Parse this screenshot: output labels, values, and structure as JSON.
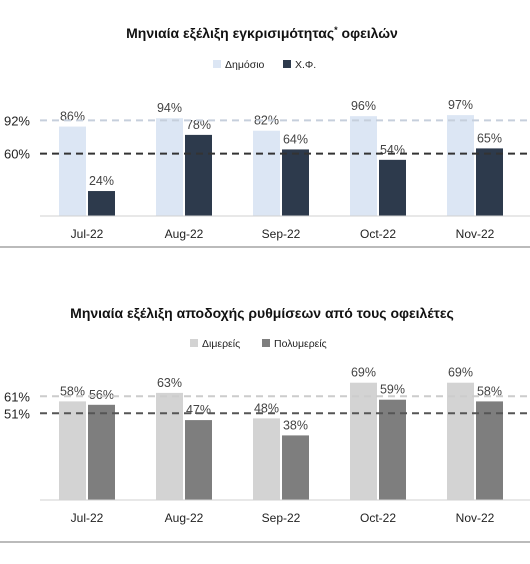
{
  "chart_data": [
    {
      "type": "bar",
      "title": "Μηνιαία εξέλιξη εγκρισιμότητας",
      "title_suffix": "*",
      "title_tail": " οφειλών",
      "categories": [
        "Jul-22",
        "Aug-22",
        "Sep-22",
        "Oct-22",
        "Nov-22"
      ],
      "series": [
        {
          "name": "Δημόσιο",
          "values": [
            86,
            94,
            82,
            96,
            97
          ],
          "color": "#dce6f4"
        },
        {
          "name": "Χ.Φ.",
          "values": [
            24,
            78,
            64,
            54,
            65
          ],
          "color": "#2d3a4c"
        }
      ],
      "value_suffix": "%",
      "ylim": [
        0,
        100
      ],
      "reference_lines": [
        {
          "label": "92%",
          "value": 92,
          "color": "#c6cfdc"
        },
        {
          "label": "60%",
          "value": 60,
          "color": "#333333"
        }
      ]
    },
    {
      "type": "bar",
      "title": "Μηνιαία εξέλιξη αποδοχής ρυθμίσεων από τους οφειλέτες",
      "title_suffix": "",
      "title_tail": "",
      "categories": [
        "Jul-22",
        "Aug-22",
        "Sep-22",
        "Oct-22",
        "Nov-22"
      ],
      "series": [
        {
          "name": "Διμερείς",
          "values": [
            58,
            63,
            48,
            69,
            69
          ],
          "color": "#d3d3d3"
        },
        {
          "name": "Πολυμερείς",
          "values": [
            56,
            47,
            38,
            59,
            58
          ],
          "color": "#7e7e7e"
        }
      ],
      "value_suffix": "%",
      "ylim": [
        0,
        100
      ],
      "reference_lines": [
        {
          "label": "61%",
          "value": 61,
          "color": "#cccccc"
        },
        {
          "label": "51%",
          "value": 51,
          "color": "#555555"
        }
      ]
    }
  ]
}
